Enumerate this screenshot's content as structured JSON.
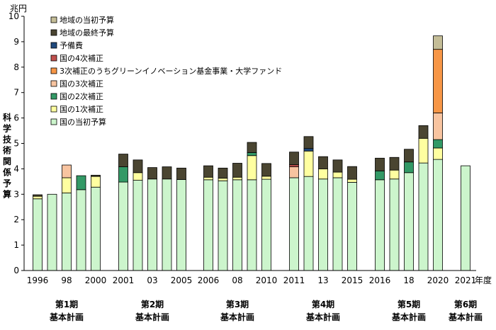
{
  "chart_data": {
    "type": "bar",
    "stacked": true,
    "y_unit": "兆円",
    "ylabel": "科学技術関係予算",
    "ylim": [
      0,
      10
    ],
    "yticks": [
      0,
      1,
      2,
      3,
      4,
      5,
      6,
      7,
      8,
      9,
      10
    ],
    "x_suffix": "年度",
    "x": [
      1996,
      1997,
      1998,
      1999,
      2000,
      2001,
      2002,
      2003,
      2004,
      2005,
      2006,
      2007,
      2008,
      2009,
      2010,
      2011,
      2012,
      2013,
      2014,
      2015,
      2016,
      2017,
      2018,
      2019,
      2020,
      2021
    ],
    "x_tick_labels": [
      {
        "year": 1996,
        "label": "1996"
      },
      {
        "year": 1998,
        "label": "98"
      },
      {
        "year": 2000,
        "label": "2000"
      },
      {
        "year": 2001,
        "label": "2001"
      },
      {
        "year": 2003,
        "label": "03"
      },
      {
        "year": 2005,
        "label": "2005"
      },
      {
        "year": 2006,
        "label": "2006"
      },
      {
        "year": 2008,
        "label": "08"
      },
      {
        "year": 2010,
        "label": "2010"
      },
      {
        "year": 2011,
        "label": "2011"
      },
      {
        "year": 2013,
        "label": "13"
      },
      {
        "year": 2015,
        "label": "2015"
      },
      {
        "year": 2016,
        "label": "2016"
      },
      {
        "year": 2018,
        "label": "18"
      },
      {
        "year": 2020,
        "label": "2020"
      },
      {
        "year": 2021,
        "label": "2021"
      }
    ],
    "series": [
      {
        "name": "国の当初予算",
        "color": "#ccf5cc",
        "values": [
          2.82,
          3.0,
          3.05,
          3.18,
          3.28,
          3.48,
          3.55,
          3.6,
          3.6,
          3.58,
          3.57,
          3.53,
          3.57,
          3.57,
          3.59,
          3.65,
          3.7,
          3.6,
          3.65,
          3.47,
          3.57,
          3.6,
          3.85,
          4.23,
          4.37,
          4.12
        ]
      },
      {
        "name": "国の1次補正",
        "color": "#ffffa0",
        "values": [
          0.1,
          0,
          0.6,
          0,
          0.42,
          0,
          0.3,
          0,
          0,
          0,
          0.1,
          0.1,
          0.1,
          0.95,
          0.12,
          0,
          1.0,
          0.4,
          0.22,
          0.12,
          0,
          0.35,
          0,
          0.97,
          0.45,
          0
        ]
      },
      {
        "name": "国の2次補正",
        "color": "#339966",
        "values": [
          0,
          0,
          0,
          0.55,
          0,
          0.6,
          0,
          0,
          0,
          0,
          0,
          0,
          0,
          0.12,
          0,
          0,
          0,
          0,
          0,
          0,
          0.35,
          0,
          0.42,
          0,
          0.33,
          0
        ]
      },
      {
        "name": "国の3次補正",
        "color": "#f8c4a0",
        "values": [
          0,
          0,
          0.5,
          0,
          0,
          0,
          0,
          0,
          0,
          0,
          0,
          0,
          0,
          0,
          0,
          0.43,
          0,
          0,
          0,
          0,
          0,
          0,
          0,
          0,
          1.05,
          0
        ]
      },
      {
        "name": "3次補正のうちグリーンイノベーション基金事業・大学ファンド",
        "color": "#f79646",
        "values": [
          0,
          0,
          0,
          0,
          0,
          0,
          0,
          0,
          0,
          0,
          0,
          0,
          0,
          0,
          0,
          0,
          0,
          0,
          0,
          0,
          0,
          0,
          0,
          0,
          2.5,
          0
        ]
      },
      {
        "name": "国の4次補正",
        "color": "#c0504d",
        "values": [
          0,
          0,
          0,
          0,
          0,
          0,
          0,
          0,
          0,
          0,
          0,
          0,
          0,
          0,
          0,
          0.08,
          0,
          0,
          0,
          0,
          0,
          0,
          0,
          0,
          0,
          0
        ]
      },
      {
        "name": "予備費",
        "color": "#1f497d",
        "values": [
          0,
          0,
          0,
          0,
          0,
          0,
          0,
          0,
          0,
          0,
          0,
          0,
          0,
          0,
          0,
          0,
          0.1,
          0,
          0,
          0,
          0,
          0,
          0,
          0,
          0,
          0
        ]
      },
      {
        "name": "地域の最終予算",
        "color": "#4a4531",
        "values": [
          0.06,
          0,
          0,
          0,
          0.05,
          0.5,
          0.5,
          0.45,
          0.48,
          0.45,
          0.45,
          0.4,
          0.55,
          0.4,
          0.5,
          0.5,
          0.47,
          0.48,
          0.48,
          0.5,
          0.5,
          0.5,
          0.5,
          0.5,
          0,
          0
        ]
      },
      {
        "name": "地域の当初予算",
        "color": "#c4bd97",
        "values": [
          0,
          0,
          0,
          0,
          0,
          0,
          0,
          0,
          0,
          0,
          0,
          0,
          0,
          0,
          0,
          0,
          0,
          0,
          0,
          0,
          0,
          0,
          0,
          0,
          0.53,
          0
        ]
      }
    ],
    "legend": "top-left, reversed stacking order",
    "periods": [
      {
        "line1": "第1期",
        "line2": "基本計画",
        "from": 1996,
        "to": 2000
      },
      {
        "line1": "第2期",
        "line2": "基本計画",
        "from": 2001,
        "to": 2005
      },
      {
        "line1": "第3期",
        "line2": "基本計画",
        "from": 2006,
        "to": 2010
      },
      {
        "line1": "第4期",
        "line2": "基本計画",
        "from": 2011,
        "to": 2015
      },
      {
        "line1": "第5期",
        "line2": "基本計画",
        "from": 2016,
        "to": 2020
      },
      {
        "line1": "第6期",
        "line2": "基本計画",
        "from": 2021,
        "to": 2021
      }
    ]
  }
}
